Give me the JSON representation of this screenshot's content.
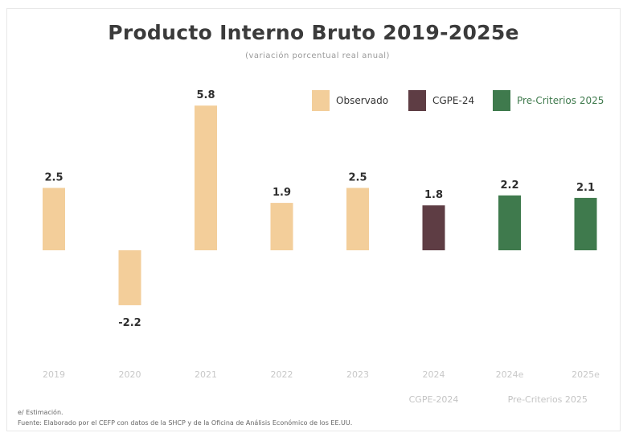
{
  "chart_data": {
    "type": "bar",
    "title": "Producto Interno Bruto 2019-2025e",
    "subtitle": "(variación porcentual real anual)",
    "categories": [
      "2019",
      "2020",
      "2021",
      "2022",
      "2023",
      "2024",
      "2024e",
      "2025e"
    ],
    "values": [
      2.5,
      -2.2,
      5.8,
      1.9,
      2.5,
      1.8,
      2.2,
      2.1
    ],
    "value_labels": [
      "2.5",
      "-2.2",
      "5.8",
      "1.9",
      "2.5",
      "1.8",
      "2.2",
      "2.1"
    ],
    "bar_series": [
      "Observado",
      "Observado",
      "Observado",
      "Observado",
      "Observado",
      "CGPE-24",
      "Pre-Criterios 2025",
      "Pre-Criterios 2025"
    ],
    "series": [
      {
        "name": "Observado",
        "color": "#f3ce9a"
      },
      {
        "name": "CGPE-24",
        "color": "#5e3d44"
      },
      {
        "name": "Pre-Criterios 2025",
        "color": "#3f7a4d"
      }
    ],
    "group_labels": [
      {
        "label": "CGPE-2024",
        "categories": [
          "2024"
        ]
      },
      {
        "label": "Pre-Criterios 2025",
        "categories": [
          "2024e",
          "2025e"
        ]
      }
    ],
    "legend_position": "top-right",
    "grid": false
  },
  "notes": {
    "estimate_note": "e/ Estimación.",
    "source": "Fuente: Elaborado por el CEFP con datos de la SHCP y de la Oficina de Análisis Económico de los EE.UU."
  }
}
